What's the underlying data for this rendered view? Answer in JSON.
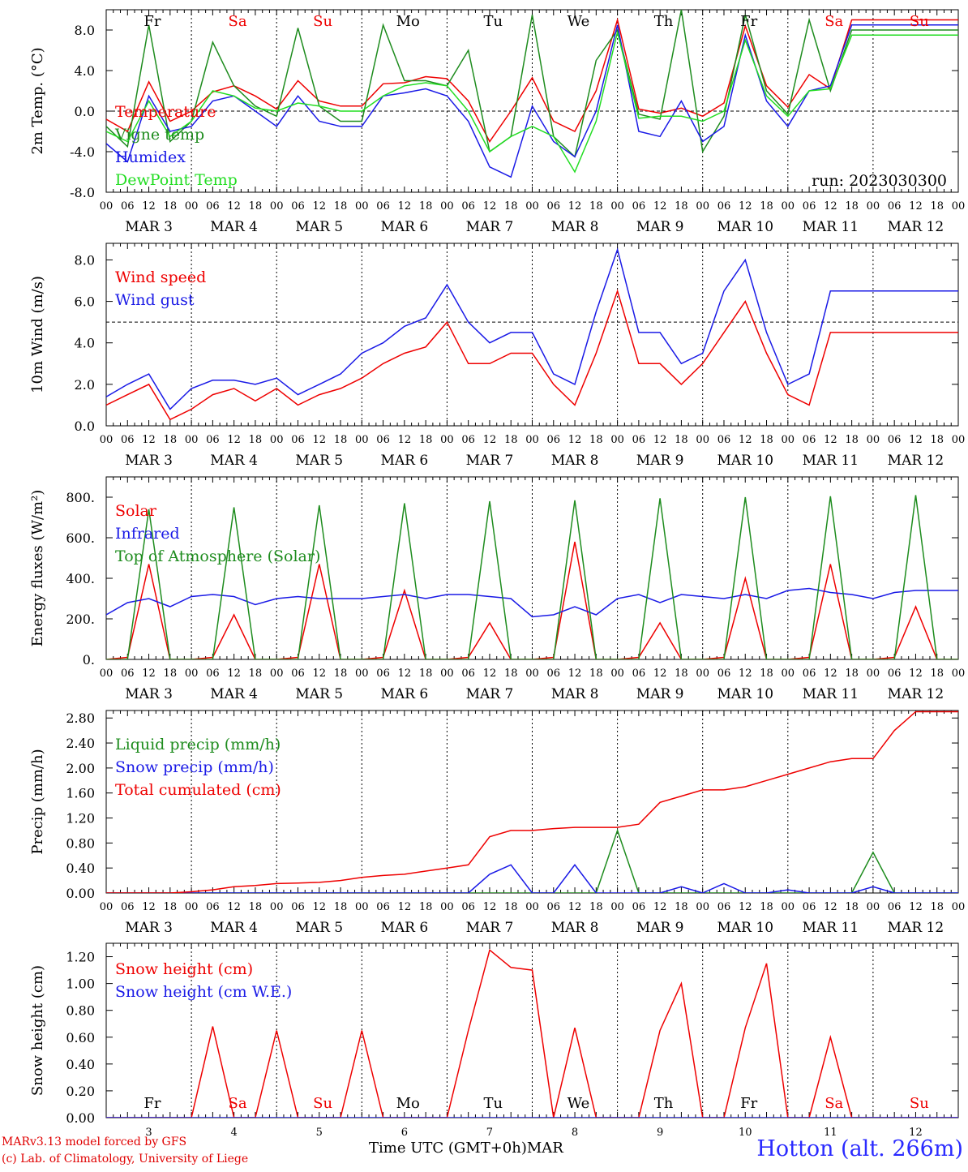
{
  "colors": {
    "red": "#ee0000",
    "green": "#1e8c1e",
    "blue": "#1a1ae6",
    "lightgreen": "#22dd22"
  },
  "days": [
    "Fr",
    "Sa",
    "Su",
    "Mo",
    "Tu",
    "We",
    "Th",
    "Fr",
    "Sa",
    "Su"
  ],
  "weekend_flags": [
    false,
    true,
    true,
    false,
    false,
    false,
    false,
    false,
    true,
    true
  ],
  "hour_ticks": [
    "00",
    "06",
    "12",
    "18"
  ],
  "date_labels": [
    "MAR  3",
    "MAR  4",
    "MAR  5",
    "MAR  6",
    "MAR  7",
    "MAR  8",
    "MAR  9",
    "MAR 10",
    "MAR 11",
    "MAR 12"
  ],
  "bottom_day_numbers": [
    "3",
    "4",
    "5",
    "6",
    "7",
    "8",
    "9",
    "10",
    "11",
    "12"
  ],
  "footer": {
    "model": "MARv3.13 model forced by GFS",
    "credit": "(c) Lab. of Climatology, University of Liege",
    "time_label": "Time UTC (GMT+0h)",
    "month": "MAR",
    "station": "Hotton (alt. 266m)"
  },
  "run_label": "run: 2023030300",
  "chart_data": [
    {
      "type": "line",
      "ylabel": "2m Temp. (°C)",
      "ylim": [
        -8,
        10
      ],
      "yticks": [
        "-8.0",
        "-4.0",
        "0.0",
        "4.0",
        "8.0"
      ],
      "ytick_values": [
        -8,
        -4,
        0,
        4,
        8
      ],
      "refline": 0,
      "x_hours": [
        0,
        6,
        12,
        18,
        24,
        30,
        36,
        42,
        48,
        54,
        60,
        66,
        72,
        78,
        84,
        90,
        96,
        102,
        108,
        114,
        120,
        126,
        132,
        138,
        144,
        150,
        156,
        162,
        168,
        174,
        180,
        186,
        192,
        198,
        204,
        210,
        216,
        222,
        228,
        234,
        240
      ],
      "series": [
        {
          "name": "Temperature",
          "color": "red",
          "values": [
            -0.8,
            -2.0,
            2.9,
            -1.0,
            0.0,
            1.9,
            2.5,
            1.5,
            0.2,
            3.0,
            1.0,
            0.5,
            0.5,
            2.7,
            2.8,
            3.4,
            3.2,
            1.0,
            -3.0,
            0.0,
            3.3,
            -1.0,
            -2.0,
            2.0,
            9.0,
            0.2,
            -0.2,
            0.3,
            -0.5,
            0.8,
            8.4,
            2.5,
            0.4,
            3.6,
            2.2,
            9.0,
            9.0,
            9.0,
            9.0,
            9.0,
            9.0
          ]
        },
        {
          "name": "Vigne temp",
          "color": "green",
          "values": [
            -1.5,
            -3.5,
            8.5,
            -3.0,
            -1.0,
            6.8,
            2.5,
            0.5,
            -0.5,
            8.2,
            0.5,
            -1.0,
            -1.0,
            8.5,
            3.0,
            3.0,
            2.5,
            6.0,
            -4.0,
            -2.5,
            9.5,
            -2.5,
            -4.5,
            5.0,
            8.0,
            -0.3,
            -0.8,
            10.0,
            -4.0,
            -0.5,
            9.5,
            2.0,
            -0.3,
            9.0,
            2.0,
            8.0,
            8.0,
            8.0,
            8.0,
            8.0,
            8.0
          ]
        },
        {
          "name": "Humidex",
          "color": "blue",
          "values": [
            -3.2,
            -5.0,
            1.5,
            -2.0,
            -1.5,
            1.0,
            1.5,
            0.0,
            -1.5,
            1.5,
            -1.0,
            -1.5,
            -1.5,
            1.5,
            1.8,
            2.2,
            1.5,
            -1.0,
            -5.5,
            -6.5,
            0.5,
            -3.0,
            -4.5,
            0.0,
            8.5,
            -2.0,
            -2.5,
            1.0,
            -3.0,
            -1.5,
            7.5,
            1.0,
            -1.5,
            2.0,
            2.5,
            8.5,
            8.5,
            8.5,
            8.5,
            8.5,
            8.5
          ]
        },
        {
          "name": "DewPoint Temp",
          "color": "lightgreen",
          "values": [
            -2.0,
            -3.0,
            1.0,
            -2.5,
            -1.0,
            2.0,
            1.5,
            0.3,
            0.0,
            0.8,
            0.5,
            0.0,
            0.0,
            1.5,
            2.5,
            2.8,
            2.5,
            0.0,
            -4.0,
            -2.5,
            -1.5,
            -2.5,
            -6.0,
            -1.0,
            7.8,
            -0.7,
            -0.5,
            -0.5,
            -1.0,
            0.0,
            7.0,
            1.5,
            -0.5,
            2.0,
            2.2,
            7.5,
            7.5,
            7.5,
            7.5,
            7.5,
            7.5
          ]
        }
      ]
    },
    {
      "type": "line",
      "ylabel": "10m Wind (m/s)",
      "ylim": [
        0,
        8.8
      ],
      "yticks": [
        "0.0",
        "2.0",
        "4.0",
        "6.0",
        "8.0"
      ],
      "ytick_values": [
        0,
        2,
        4,
        6,
        8
      ],
      "refline": 5,
      "x_hours": [
        0,
        6,
        12,
        18,
        24,
        30,
        36,
        42,
        48,
        54,
        60,
        66,
        72,
        78,
        84,
        90,
        96,
        102,
        108,
        114,
        120,
        126,
        132,
        138,
        144,
        150,
        156,
        162,
        168,
        174,
        180,
        186,
        192,
        198,
        204,
        210,
        216,
        222,
        228,
        234,
        240
      ],
      "series": [
        {
          "name": "Wind speed",
          "color": "red",
          "values": [
            1.0,
            1.5,
            2.0,
            0.3,
            0.8,
            1.5,
            1.8,
            1.2,
            1.8,
            1.0,
            1.5,
            1.8,
            2.3,
            3.0,
            3.5,
            3.8,
            5.0,
            3.0,
            3.0,
            3.5,
            3.5,
            2.0,
            1.0,
            3.5,
            6.5,
            3.0,
            3.0,
            2.0,
            3.0,
            4.5,
            6.0,
            3.5,
            1.5,
            1.0,
            4.5,
            4.5,
            4.5,
            4.5,
            4.5,
            4.5,
            4.5
          ]
        },
        {
          "name": "Wind gust",
          "color": "blue",
          "values": [
            1.4,
            2.0,
            2.5,
            0.8,
            1.8,
            2.2,
            2.2,
            2.0,
            2.3,
            1.5,
            2.0,
            2.5,
            3.5,
            4.0,
            4.8,
            5.2,
            6.8,
            5.0,
            4.0,
            4.5,
            4.5,
            2.5,
            2.0,
            5.5,
            8.5,
            4.5,
            4.5,
            3.0,
            3.5,
            6.5,
            8.0,
            4.5,
            2.0,
            2.5,
            6.5,
            6.5,
            6.5,
            6.5,
            6.5,
            6.5,
            6.5
          ]
        }
      ]
    },
    {
      "type": "line",
      "ylabel": "Energy fluxes (W/m²)",
      "ylim": [
        0,
        900
      ],
      "yticks": [
        "0.",
        "200.",
        "400.",
        "600.",
        "800."
      ],
      "ytick_values": [
        0,
        200,
        400,
        600,
        800
      ],
      "x_hours": [
        0,
        6,
        12,
        18,
        24,
        30,
        36,
        42,
        48,
        54,
        60,
        66,
        72,
        78,
        84,
        90,
        96,
        102,
        108,
        114,
        120,
        126,
        132,
        138,
        144,
        150,
        156,
        162,
        168,
        174,
        180,
        186,
        192,
        198,
        204,
        210,
        216,
        222,
        228,
        234,
        240
      ],
      "series": [
        {
          "name": "Solar",
          "color": "red",
          "values": [
            0,
            10,
            470,
            0,
            0,
            10,
            220,
            0,
            0,
            10,
            470,
            0,
            0,
            10,
            340,
            0,
            0,
            10,
            180,
            0,
            0,
            10,
            580,
            0,
            0,
            10,
            180,
            0,
            0,
            10,
            400,
            0,
            0,
            10,
            470,
            0,
            0,
            10,
            260,
            0,
            0
          ]
        },
        {
          "name": "Infrared",
          "color": "blue",
          "values": [
            220,
            280,
            300,
            260,
            310,
            320,
            310,
            270,
            300,
            310,
            300,
            300,
            300,
            310,
            320,
            300,
            320,
            320,
            310,
            300,
            210,
            220,
            260,
            220,
            300,
            320,
            280,
            320,
            310,
            300,
            320,
            300,
            340,
            350,
            330,
            320,
            300,
            330,
            340,
            340,
            340
          ]
        },
        {
          "name": "Top of Atmosphere (Solar)",
          "color": "green",
          "values": [
            0,
            0,
            740,
            0,
            0,
            0,
            750,
            0,
            0,
            0,
            760,
            0,
            0,
            0,
            770,
            0,
            0,
            0,
            780,
            0,
            0,
            0,
            785,
            0,
            0,
            0,
            795,
            0,
            0,
            0,
            800,
            0,
            0,
            0,
            805,
            0,
            0,
            0,
            810,
            0,
            0
          ]
        }
      ]
    },
    {
      "type": "line",
      "ylabel": "Precip (mm/h)",
      "ylim": [
        0,
        2.92
      ],
      "yticks": [
        "0.00",
        "0.40",
        "0.80",
        "1.20",
        "1.60",
        "2.00",
        "2.40",
        "2.80"
      ],
      "ytick_values": [
        0,
        0.4,
        0.8,
        1.2,
        1.6,
        2.0,
        2.4,
        2.8
      ],
      "x_hours": [
        0,
        6,
        12,
        18,
        24,
        30,
        36,
        42,
        48,
        54,
        60,
        66,
        72,
        78,
        84,
        90,
        96,
        102,
        108,
        114,
        120,
        126,
        132,
        138,
        144,
        150,
        156,
        162,
        168,
        174,
        180,
        186,
        192,
        198,
        204,
        210,
        216,
        222,
        228,
        234,
        240
      ],
      "series": [
        {
          "name": "Liquid precip (mm/h)",
          "color": "green",
          "values": [
            0,
            0,
            0,
            0,
            0,
            0,
            0,
            0,
            0,
            0,
            0,
            0,
            0,
            0,
            0,
            0,
            0,
            0,
            0,
            0,
            0,
            0,
            0,
            0,
            1.0,
            0,
            0,
            0,
            0,
            0,
            0,
            0,
            0,
            0,
            0,
            0,
            0.65,
            0,
            0,
            0,
            0
          ]
        },
        {
          "name": "Snow precip (mm/h)",
          "color": "blue",
          "values": [
            0,
            0,
            0,
            0,
            0,
            0,
            0,
            0,
            0,
            0,
            0,
            0,
            0,
            0,
            0,
            0,
            0,
            0,
            0.3,
            0.45,
            0,
            0,
            0.45,
            0,
            0,
            0,
            0,
            0.1,
            0,
            0.15,
            0,
            0,
            0.05,
            0,
            0,
            0,
            0.1,
            0,
            0,
            0,
            0
          ]
        },
        {
          "name": "Total cumulated (cm)",
          "color": "red",
          "values": [
            0,
            0,
            0,
            0,
            0.02,
            0.05,
            0.1,
            0.12,
            0.15,
            0.16,
            0.17,
            0.2,
            0.25,
            0.28,
            0.3,
            0.35,
            0.4,
            0.45,
            0.9,
            1.0,
            1.0,
            1.03,
            1.05,
            1.05,
            1.05,
            1.1,
            1.45,
            1.55,
            1.65,
            1.65,
            1.7,
            1.8,
            1.9,
            2.0,
            2.1,
            2.15,
            2.15,
            2.6,
            2.9,
            2.9,
            2.9
          ]
        }
      ]
    },
    {
      "type": "line",
      "ylabel": "Snow height (cm)",
      "ylim": [
        0,
        1.3
      ],
      "yticks": [
        "0.00",
        "0.20",
        "0.40",
        "0.60",
        "0.80",
        "1.00",
        "1.20"
      ],
      "ytick_values": [
        0,
        0.2,
        0.4,
        0.6,
        0.8,
        1.0,
        1.2
      ],
      "x_hours": [
        0,
        6,
        12,
        18,
        24,
        30,
        36,
        42,
        48,
        54,
        60,
        66,
        72,
        78,
        84,
        90,
        96,
        102,
        108,
        114,
        120,
        126,
        132,
        138,
        144,
        150,
        156,
        162,
        168,
        174,
        180,
        186,
        192,
        198,
        204,
        210,
        216,
        222,
        228,
        234,
        240
      ],
      "series": [
        {
          "name": "Snow height (cm)",
          "color": "red",
          "values": [
            0,
            0,
            0,
            0,
            0,
            0.68,
            0,
            0,
            0.65,
            0,
            0,
            0,
            0.65,
            0,
            0,
            0,
            0,
            0.65,
            1.25,
            1.12,
            1.1,
            0,
            0.67,
            0,
            0,
            0,
            0.65,
            1.0,
            0,
            0,
            0.67,
            1.15,
            0,
            0,
            0.6,
            0,
            0,
            0,
            0,
            0,
            0
          ]
        },
        {
          "name": "Snow height (cm W.E.)",
          "color": "blue",
          "values": [
            0,
            0,
            0,
            0,
            0,
            0,
            0,
            0,
            0,
            0,
            0,
            0,
            0,
            0,
            0,
            0,
            0,
            0,
            0,
            0,
            0,
            0,
            0,
            0,
            0,
            0,
            0,
            0,
            0,
            0,
            0,
            0,
            0,
            0,
            0,
            0,
            0,
            0,
            0,
            0,
            0
          ]
        }
      ]
    }
  ]
}
